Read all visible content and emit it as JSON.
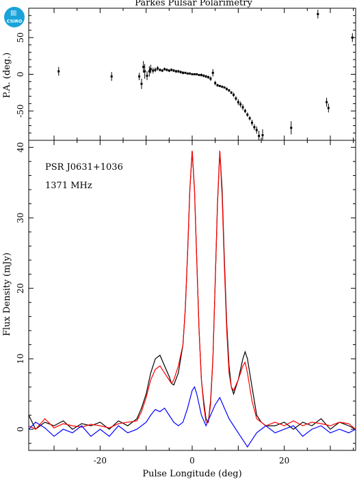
{
  "logo_text": "CSIRO",
  "chart_data": [
    {
      "type": "scatter",
      "panel": "pa",
      "title": "Parkes Pulsar Polarimetry",
      "ylabel": "P.A. (deg.)",
      "xlim": [
        -35.5,
        35.5
      ],
      "ylim": [
        -90,
        90
      ],
      "yticks": [
        -50,
        0,
        50
      ],
      "points": [
        {
          "x": -29.0,
          "y": 4,
          "err": 6
        },
        {
          "x": -17.5,
          "y": -3,
          "err": 6
        },
        {
          "x": -11.5,
          "y": -3,
          "err": 5
        },
        {
          "x": -11.0,
          "y": -13,
          "err": 7
        },
        {
          "x": -10.6,
          "y": 10,
          "err": 8
        },
        {
          "x": -10.3,
          "y": 4,
          "err": 10
        },
        {
          "x": -9.8,
          "y": -2,
          "err": 6
        },
        {
          "x": -9.3,
          "y": 4,
          "err": 7
        },
        {
          "x": -9.0,
          "y": 7,
          "err": 6
        },
        {
          "x": -8.5,
          "y": 5,
          "err": 4
        },
        {
          "x": -8.0,
          "y": 6,
          "err": 3
        },
        {
          "x": -7.5,
          "y": 8,
          "err": 3
        },
        {
          "x": -7.0,
          "y": 6,
          "err": 2
        },
        {
          "x": -6.5,
          "y": 5,
          "err": 2
        },
        {
          "x": -6.0,
          "y": 7,
          "err": 2
        },
        {
          "x": -5.5,
          "y": 6,
          "err": 2
        },
        {
          "x": -5.0,
          "y": 5,
          "err": 2
        },
        {
          "x": -4.5,
          "y": 6,
          "err": 2
        },
        {
          "x": -4.0,
          "y": 5,
          "err": 2
        },
        {
          "x": -3.5,
          "y": 4,
          "err": 2
        },
        {
          "x": -3.0,
          "y": 4,
          "err": 2
        },
        {
          "x": -2.5,
          "y": 3,
          "err": 2
        },
        {
          "x": -2.0,
          "y": 2,
          "err": 2
        },
        {
          "x": -1.5,
          "y": 2,
          "err": 1
        },
        {
          "x": -1.0,
          "y": 1,
          "err": 1
        },
        {
          "x": -0.5,
          "y": 1,
          "err": 1
        },
        {
          "x": 0.0,
          "y": 0,
          "err": 1
        },
        {
          "x": 0.5,
          "y": 0,
          "err": 1
        },
        {
          "x": 1.0,
          "y": 0,
          "err": 1
        },
        {
          "x": 1.5,
          "y": -1,
          "err": 1
        },
        {
          "x": 2.0,
          "y": -1,
          "err": 2
        },
        {
          "x": 2.5,
          "y": -2,
          "err": 2
        },
        {
          "x": 3.0,
          "y": -3,
          "err": 2
        },
        {
          "x": 3.5,
          "y": -4,
          "err": 2
        },
        {
          "x": 4.0,
          "y": -6,
          "err": 3
        },
        {
          "x": 4.5,
          "y": 2,
          "err": 5
        },
        {
          "x": 5.0,
          "y": -12,
          "err": 3
        },
        {
          "x": 5.5,
          "y": -15,
          "err": 2
        },
        {
          "x": 6.0,
          "y": -16,
          "err": 1
        },
        {
          "x": 6.5,
          "y": -17,
          "err": 1
        },
        {
          "x": 7.0,
          "y": -18,
          "err": 1
        },
        {
          "x": 7.5,
          "y": -20,
          "err": 2
        },
        {
          "x": 8.0,
          "y": -22,
          "err": 2
        },
        {
          "x": 8.5,
          "y": -25,
          "err": 2
        },
        {
          "x": 9.0,
          "y": -28,
          "err": 3
        },
        {
          "x": 9.5,
          "y": -33,
          "err": 3
        },
        {
          "x": 10.0,
          "y": -38,
          "err": 4
        },
        {
          "x": 10.5,
          "y": -41,
          "err": 4
        },
        {
          "x": 11.0,
          "y": -45,
          "err": 4
        },
        {
          "x": 11.5,
          "y": -50,
          "err": 3
        },
        {
          "x": 12.0,
          "y": -55,
          "err": 3
        },
        {
          "x": 12.5,
          "y": -60,
          "err": 3
        },
        {
          "x": 13.0,
          "y": -66,
          "err": 4
        },
        {
          "x": 13.5,
          "y": -72,
          "err": 4
        },
        {
          "x": 14.0,
          "y": -76,
          "err": 5
        },
        {
          "x": 14.5,
          "y": -84,
          "err": 7
        },
        {
          "x": 15.3,
          "y": -83,
          "err": 8
        },
        {
          "x": 21.5,
          "y": -73,
          "err": 9
        },
        {
          "x": 27.3,
          "y": 82,
          "err": 6
        },
        {
          "x": 29.2,
          "y": -38,
          "err": 6
        },
        {
          "x": 29.6,
          "y": -46,
          "err": 6
        },
        {
          "x": 34.8,
          "y": 50,
          "err": 6
        }
      ]
    },
    {
      "type": "line",
      "panel": "flux",
      "xlabel": "Pulse Longitude (deg)",
      "ylabel": "Flux Density (mJy)",
      "xlim": [
        -35.5,
        35.5
      ],
      "ylim": [
        -3,
        41
      ],
      "xticks": [
        -20,
        0,
        20
      ],
      "yticks": [
        0,
        10,
        20,
        30,
        40
      ],
      "annotations": [
        "PSR J0631+1036",
        "1371 MHz"
      ],
      "series": [
        {
          "color": "#000000",
          "x": [
            -35.5,
            -34,
            -32,
            -30,
            -28,
            -26,
            -24,
            -22,
            -20,
            -18,
            -16,
            -14,
            -12,
            -11,
            -10,
            -9,
            -8,
            -7,
            -6,
            -5,
            -4.5,
            -4,
            -3,
            -2,
            -1.5,
            -1,
            -0.5,
            0,
            0.5,
            1,
            1.5,
            2,
            2.5,
            3,
            3.5,
            4,
            4.5,
            5,
            5.5,
            6,
            6.5,
            7,
            7.5,
            8,
            8.5,
            9,
            10,
            11,
            11.5,
            12,
            13,
            14,
            15,
            16,
            18,
            20,
            22,
            24,
            26,
            28,
            30,
            32,
            34,
            35.5
          ],
          "y": [
            2,
            0,
            1,
            0.5,
            1.2,
            0,
            0.8,
            0.5,
            1,
            0,
            1.2,
            0.5,
            1.5,
            3,
            5,
            8,
            10,
            10.5,
            9,
            7.5,
            6.5,
            6.3,
            8,
            12,
            17,
            25,
            34,
            39.5,
            34,
            24,
            14,
            7,
            4,
            1.5,
            1,
            4,
            10,
            21,
            32,
            39.5,
            34,
            24,
            15,
            9,
            6,
            5,
            7,
            10,
            11,
            10,
            6,
            2,
            1,
            0.5,
            0.5,
            1,
            0,
            1,
            0.5,
            1.5,
            0,
            1,
            0.5,
            0
          ]
        },
        {
          "color": "#ff0000",
          "x": [
            -35.5,
            -34,
            -32,
            -30,
            -28,
            -26,
            -24,
            -22,
            -20,
            -18,
            -16,
            -14,
            -12,
            -11,
            -10,
            -9,
            -8,
            -7,
            -6,
            -5,
            -4.5,
            -4,
            -3,
            -2,
            -1.5,
            -1,
            -0.5,
            0,
            0.5,
            1,
            1.5,
            2,
            2.5,
            3,
            3.5,
            4,
            4.5,
            5,
            5.5,
            6,
            6.5,
            7,
            7.5,
            8,
            8.5,
            9,
            10,
            11,
            11.5,
            12,
            13,
            14,
            15,
            16,
            18,
            20,
            22,
            24,
            26,
            28,
            30,
            32,
            34,
            35.5
          ],
          "y": [
            0.5,
            0,
            1.5,
            0.2,
            0.8,
            0.5,
            0.3,
            0.7,
            0.5,
            0.2,
            0.8,
            1,
            1.2,
            2.5,
            4.5,
            7,
            8.5,
            9,
            8,
            7,
            6.5,
            7,
            9,
            12,
            17,
            25,
            34,
            39.5,
            34,
            24,
            14,
            7,
            3.5,
            1,
            1,
            3.5,
            10,
            21,
            32,
            39.5,
            33,
            23,
            14,
            8,
            6,
            5.5,
            7,
            9,
            9.5,
            8,
            4,
            1.5,
            1,
            0.5,
            1,
            0.5,
            1.2,
            0.5,
            1,
            0.8,
            0.5,
            1,
            0.8,
            0
          ]
        },
        {
          "color": "#0000ff",
          "x": [
            -35.5,
            -34,
            -32,
            -30,
            -28,
            -26,
            -24,
            -22,
            -20,
            -18,
            -16,
            -14,
            -12,
            -11,
            -10,
            -9,
            -8,
            -7,
            -6,
            -5,
            -4,
            -3,
            -2,
            -1,
            0,
            0.5,
            1,
            2,
            3,
            4,
            5,
            6,
            7,
            8,
            9,
            10,
            11,
            12,
            13,
            14,
            15,
            16,
            18,
            20,
            22,
            24,
            26,
            28,
            30,
            32,
            34,
            35.5
          ],
          "y": [
            0,
            1,
            0.2,
            -1,
            0,
            -0.5,
            0.5,
            -1,
            0,
            -1,
            0.5,
            -0.5,
            0,
            0.5,
            1,
            2,
            2.8,
            2.5,
            3,
            2,
            1,
            0.5,
            1,
            3,
            5.5,
            6,
            5,
            2,
            0.5,
            2,
            3.5,
            4.5,
            3,
            1.5,
            0.5,
            -0.5,
            -1.5,
            -2.5,
            -1.5,
            -0.5,
            0,
            0.5,
            -0.5,
            0,
            0.5,
            -1,
            0,
            0.5,
            -0.5,
            0,
            -0.5,
            0
          ]
        }
      ]
    }
  ]
}
